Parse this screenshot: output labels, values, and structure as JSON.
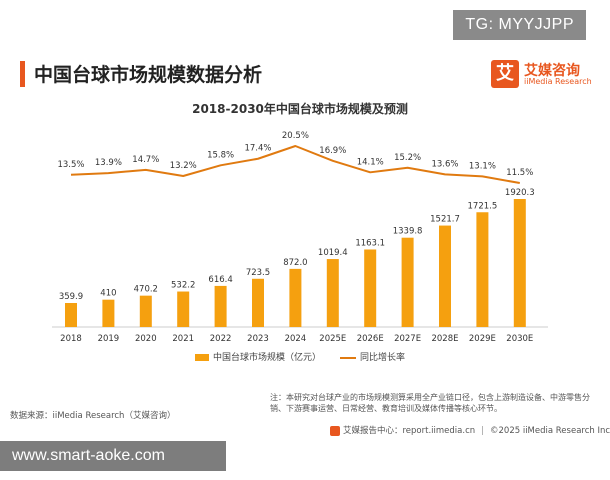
{
  "badge": "TG: MYYJJPP",
  "page_title": "中国台球市场规模数据分析",
  "logo": {
    "mark": "艾",
    "name_cn": "艾媒咨询",
    "name_en": "iiMedia Research"
  },
  "chart_data": {
    "type": "bar",
    "title": "2018-2030年中国台球市场规模及预测",
    "categories": [
      "2018",
      "2019",
      "2020",
      "2021",
      "2022",
      "2023",
      "2024",
      "2025E",
      "2026E",
      "2027E",
      "2028E",
      "2029E",
      "2030E"
    ],
    "series": [
      {
        "name": "中国台球市场规模（亿元）",
        "type": "bar",
        "values": [
          359.9,
          410,
          470.2,
          532.2,
          616.4,
          723.5,
          872.0,
          1019.4,
          1163.1,
          1339.8,
          1521.7,
          1721.5,
          1920.3
        ],
        "labels": [
          "359.9",
          "410",
          "470.2",
          "532.2",
          "616.4",
          "723.5",
          "872.0",
          "1019.4",
          "1163.1",
          "1339.8",
          "1521.7",
          "1721.5",
          "1920.3"
        ],
        "color": "#f5a00f"
      },
      {
        "name": "同比增长率",
        "type": "line",
        "values": [
          13.5,
          13.9,
          14.7,
          13.2,
          15.8,
          17.4,
          20.5,
          16.9,
          14.1,
          15.2,
          13.6,
          13.1,
          11.5
        ],
        "labels": [
          "13.5%",
          "13.9%",
          "14.7%",
          "13.2%",
          "15.8%",
          "17.4%",
          "20.5%",
          "16.9%",
          "14.1%",
          "15.2%",
          "13.6%",
          "13.1%",
          "11.5%"
        ],
        "color": "#e07a10"
      }
    ],
    "legend_position": "bottom",
    "grid": false
  },
  "note": "注：本研究对台球产业的市场规模测算采用全产业链口径，包含上游制造设备、中游零售分销、下游赛事运营、日常经营、教育培训及媒体传播等核心环节。",
  "source": "数据来源：iiMedia Research（艾媒咨询）",
  "footer": {
    "report_center": "艾媒报告中心：report.iimedia.cn",
    "copyright": "©2025  iiMedia Research  Inc"
  },
  "watermark": "www.smart-aoke.com"
}
